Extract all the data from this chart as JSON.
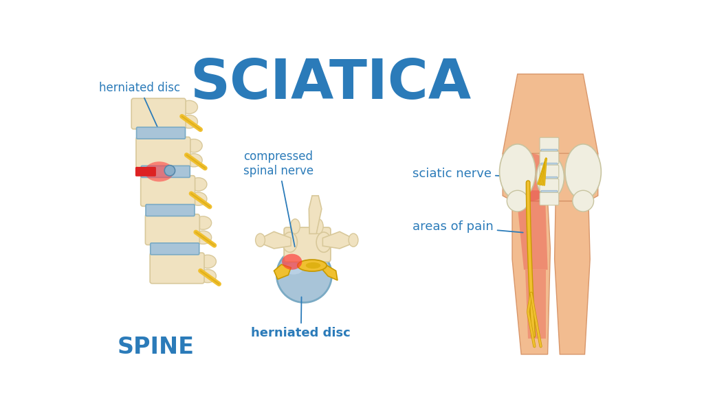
{
  "title": "SCIATICA",
  "title_color": "#2B7BB9",
  "title_fontsize": 58,
  "title_fontweight": "bold",
  "label_herniated_disc_top": "herniated disc",
  "label_compressed": "compressed\nspinal nerve",
  "label_sciatic_nerve": "sciatic nerve",
  "label_areas_of_pain": "areas of pain",
  "label_spine": "SPINE",
  "label_herniated_disc_bottom": "herniated disc",
  "label_color": "#2B7BB9",
  "label_fontsize": 12,
  "bg_color": "#ffffff",
  "bone_color": "#F0E2C0",
  "bone_edge_color": "#D8C89A",
  "disc_blue": "#A8C4D8",
  "disc_blue_dark": "#7AAAC4",
  "nerve_yellow": "#F0C030",
  "nerve_yellow_dark": "#C89A00",
  "pain_red": "#E03030",
  "skin_color": "#F2BC90",
  "skin_edge": "#D8966A",
  "white_bone": "#F0EEE0",
  "white_bone_edge": "#C8C4A0",
  "spine_label_color": "#2B7BB9",
  "spine_label_fontsize": 24,
  "arrow_color": "#2B7BB9"
}
